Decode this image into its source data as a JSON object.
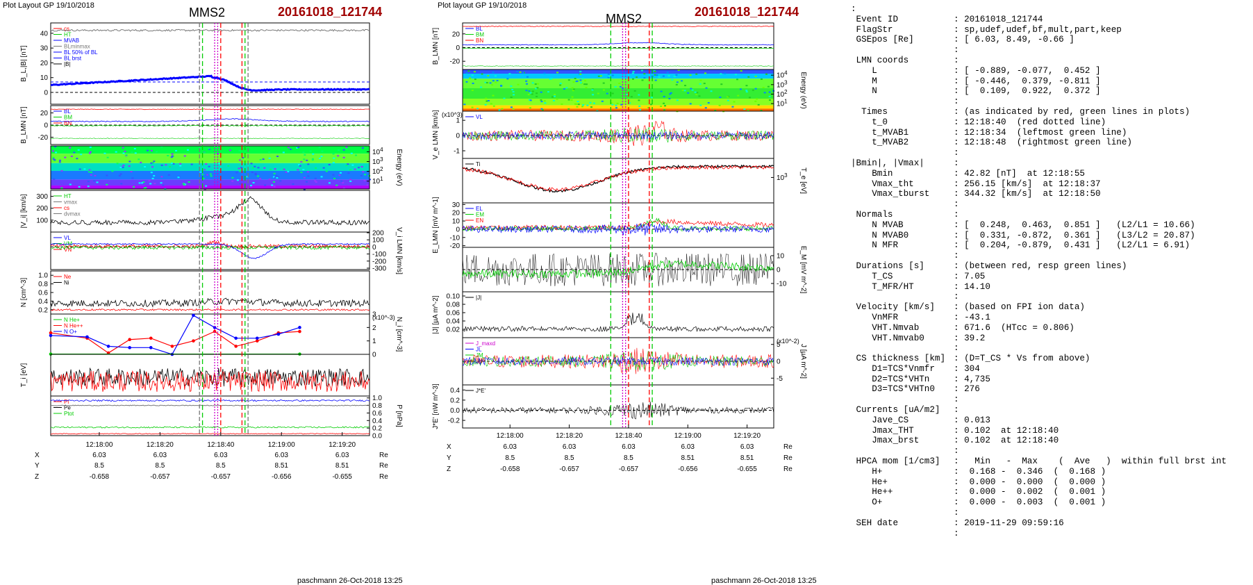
{
  "header": {
    "left_note": "Plot Layout GP 19/10/2018",
    "right_note": "Plot layout GP 19/10/2018",
    "spacecraft": "MMS2",
    "event": "20161018_121744"
  },
  "footer": {
    "left": "paschmann 26-Oct-2018 13:25",
    "right": "paschmann 26-Oct-2018 13:25"
  },
  "colors": {
    "red": "#ff0000",
    "green": "#00cc00",
    "blue": "#0000ff",
    "magenta": "#cc00cc",
    "black": "#000000",
    "gray": "#777777",
    "title_red": "#a00000"
  },
  "chart_data": [
    {
      "type": "line",
      "column": "left",
      "x_tick_labels": [
        "12:18:00",
        "12:18:20",
        "12:18:40",
        "12:19:00",
        "12:19:20"
      ],
      "x_range": [
        "12:17:44",
        "12:19:29"
      ],
      "markers": {
        "red_dashed": [
          "12:18:40",
          "12:18:47"
        ],
        "green_dashed": [
          "12:18:34",
          "12:18:48"
        ],
        "magenta_dotted": [
          "12:18:38",
          "12:18:39"
        ],
        "gray_dashed": [
          "12:18:33",
          "12:18:49"
        ]
      },
      "ephemeris": {
        "rows": [
          "X",
          "Y",
          "Z"
        ],
        "values": [
          [
            "6.03",
            "6.03",
            "6.03",
            "6.03",
            "6.03"
          ],
          [
            "8.5",
            "8.5",
            "8.5",
            "8.51",
            "8.51"
          ],
          [
            "-0.658",
            "-0.657",
            "-0.657",
            "-0.656",
            "-0.655"
          ]
        ],
        "unit": "Re"
      },
      "panels": [
        {
          "ylabel": "B_L,|B| [nT]",
          "yticks_left": [
            "40",
            "30",
            "20",
            "10",
            "0"
          ],
          "ylim": [
            -8,
            47
          ],
          "legend": [
            "cs",
            "HT",
            "MVAB",
            "BLminmax",
            "BL 50% of BL",
            "BL brst",
            "|B|"
          ],
          "series": [
            {
              "name": "|B|",
              "color": "#777777",
              "level": "flat ~42"
            },
            {
              "name": "BL",
              "color": "#0000ff",
              "shape": "rise to 11 then drop to ~0, back to 2"
            }
          ]
        },
        {
          "ylabel": "B_LMN [nT]",
          "yticks_left": [
            "20",
            "0",
            "-20"
          ],
          "ylim": [
            -32,
            32
          ],
          "legend": [
            "BL",
            "BM",
            "BN"
          ]
        },
        {
          "ylabel": "Energy (eV)",
          "yticks_right": [
            "10^4",
            "10^3",
            "10^2",
            "10^1"
          ],
          "type": "spectrogram"
        },
        {
          "ylabel": "|V_i| [km/s]",
          "yticks_left": [
            "300",
            "200",
            "100"
          ],
          "ylim": [
            0,
            350
          ],
          "legend": [
            "HT",
            "vmax",
            "cs",
            "dvmax"
          ]
        },
        {
          "ylabel": "V_i LMN [km/s]",
          "yticks_right": [
            "200",
            "100",
            "0",
            "-100",
            "-200",
            "-300"
          ],
          "ylim": [
            -320,
            210
          ],
          "legend": [
            "VL",
            "VM",
            "VN"
          ]
        },
        {
          "ylabel": "N [cm^-3]",
          "yticks_left": [
            "1.0",
            "0.8",
            "0.6",
            "0.4",
            "0.2"
          ],
          "ylim": [
            0.1,
            1.1
          ],
          "legend": [
            "Ne",
            "Ni"
          ]
        },
        {
          "ylabel": "N_i [cm^-3]",
          "scale": "x10^-3",
          "yticks_right": [
            "3",
            "2",
            "1",
            "0"
          ],
          "ylim": [
            0,
            3
          ],
          "legend": [
            "N He+",
            "N He++",
            "N O+"
          ],
          "series": [
            {
              "name": "N He++",
              "color": "#ff0000",
              "x": [
                "12:17:44",
                "12:17:56",
                "12:18:03",
                "12:18:10",
                "12:18:17",
                "12:18:24",
                "12:18:31",
                "12:18:38",
                "12:18:45",
                "12:18:52",
                "12:18:59",
                "12:19:06"
              ],
              "values": [
                1.6,
                1.2,
                0.1,
                1.1,
                1.2,
                0.6,
                1.0,
                1.7,
                0.6,
                1.0,
                1.6,
                1.7
              ]
            },
            {
              "name": "N O+",
              "color": "#0000ff",
              "x": [
                "12:17:44",
                "12:17:56",
                "12:18:03",
                "12:18:10",
                "12:18:17",
                "12:18:24",
                "12:18:31",
                "12:18:38",
                "12:18:45",
                "12:18:52",
                "12:18:59",
                "12:19:06"
              ],
              "values": [
                1.4,
                1.3,
                0.6,
                0.5,
                0.5,
                0.0,
                2.9,
                2.0,
                1.2,
                1.2,
                1.5,
                2.0
              ]
            },
            {
              "name": "N He+",
              "color": "#00cc00",
              "x": [
                "12:17:44",
                "12:19:06"
              ],
              "values": [
                0.02,
                0.02
              ]
            }
          ]
        },
        {
          "ylabel": "T_i [eV]",
          "yticks_left": [],
          "ylim": [
            0,
            1
          ]
        },
        {
          "ylabel": "P [nPa]",
          "yticks_right": [
            "1.0",
            "0.8",
            "0.6",
            "0.4",
            "0.2",
            "0.0"
          ],
          "ylim": [
            0,
            1.05
          ],
          "legend": [
            "Pi",
            "Pe",
            "Ptot"
          ]
        }
      ]
    },
    {
      "type": "line",
      "column": "right",
      "x_tick_labels": [
        "12:18:00",
        "12:18:20",
        "12:18:40",
        "12:19:00",
        "12:19:20"
      ],
      "x_range": [
        "12:17:44",
        "12:19:29"
      ],
      "markers": {
        "red_dashed": [
          "12:18:40",
          "12:18:47"
        ],
        "green_dashed": [
          "12:18:34",
          "12:18:48"
        ],
        "magenta_dotted": [
          "12:18:38",
          "12:18:39"
        ]
      },
      "ephemeris": {
        "rows": [
          "X",
          "Y",
          "Z"
        ],
        "values": [
          [
            "6.03",
            "6.03",
            "6.03",
            "6.03",
            "6.03"
          ],
          [
            "8.5",
            "8.5",
            "8.5",
            "8.51",
            "8.51"
          ],
          [
            "-0.658",
            "-0.657",
            "-0.657",
            "-0.656",
            "-0.655"
          ]
        ],
        "unit": "Re"
      },
      "panels": [
        {
          "ylabel": "B_LMN [nT]",
          "yticks_left": [
            "20",
            "0",
            "-20"
          ],
          "ylim": [
            -32,
            36
          ],
          "legend": [
            "BL",
            "BM",
            "BN"
          ]
        },
        {
          "ylabel": "Energy (eV)",
          "yticks_right": [
            "10^4",
            "10^3",
            "10^2",
            "10^1"
          ],
          "type": "spectrogram"
        },
        {
          "ylabel": "V_e LMN [km/s]",
          "scale": "x10^3",
          "yticks_left": [
            "1",
            "0",
            "-1"
          ],
          "ylim": [
            -1.5,
            1.6
          ],
          "legend": [
            "VL"
          ]
        },
        {
          "ylabel": "T_e [eV]",
          "yticks_right": [
            "10^3"
          ],
          "ylim": [
            0,
            1
          ],
          "legend": [
            "Ti"
          ]
        },
        {
          "ylabel": "E_LMN [mV m^-1]",
          "yticks_left": [
            "30",
            "20",
            "10",
            "0",
            "-10",
            "-20"
          ],
          "ylim": [
            -22,
            32
          ],
          "legend": [
            "EL",
            "EM",
            "EN"
          ]
        },
        {
          "ylabel": "E_M [mV m^-2]",
          "yticks_right": [
            "10",
            "0",
            "-10"
          ],
          "ylim": [
            -16,
            16
          ]
        },
        {
          "ylabel": "|J| [µA m^-2]",
          "yticks_left": [
            "0.10",
            "0.08",
            "0.06",
            "0.04",
            "0.02"
          ],
          "ylim": [
            0,
            0.11
          ],
          "legend": [
            "|J|"
          ]
        },
        {
          "ylabel": "J [µA m^-2]",
          "scale": "x10^-2",
          "yticks_right": [
            "5",
            "0",
            "-5"
          ],
          "ylim": [
            -7,
            7
          ],
          "legend": [
            "J_maxd",
            "JL",
            "JM",
            "JN"
          ]
        },
        {
          "ylabel": "J*E' [nW m^-3]",
          "yticks_left": [
            "0.4",
            "0.2",
            "0.0",
            "-0.2"
          ],
          "ylim": [
            -0.35,
            0.5
          ],
          "legend": [
            "J*E'"
          ]
        }
      ]
    }
  ],
  "summary": [
    [
      ":",
      "",
      ""
    ],
    [
      " Event ID",
      ": 20161018_121744"
    ],
    [
      " FlagStr",
      ": sp,udef,udef,bf,mult,part,keep"
    ],
    [
      " GSEpos [Re]",
      ": [ 6.03, 8.49, -0.66 ]"
    ],
    [
      "",
      ":"
    ],
    [
      " LMN coords",
      ":"
    ],
    [
      "    L",
      ": [ -0.889, -0.077,  0.452 ]"
    ],
    [
      "    M",
      ": [ -0.446,  0.379, -0.811 ]"
    ],
    [
      "    N",
      ": [  0.109,  0.922,  0.372 ]"
    ],
    [
      "",
      ":"
    ],
    [
      "  Times",
      ": (as indicated by red, green lines in plots)"
    ],
    [
      "    t_0",
      ": 12:18:40  (red dotted line)"
    ],
    [
      "    t_MVAB1",
      ": 12:18:34  (leftmost green line)"
    ],
    [
      "    t_MVAB2",
      ": 12:18:48  (rightmost green line)"
    ],
    [
      "",
      ":"
    ],
    [
      "|Bmin|, |Vmax|",
      ":"
    ],
    [
      "    Bmin",
      ": 42.82 [nT]  at 12:18:55"
    ],
    [
      "    Vmax_tht",
      ": 256.15 [km/s]  at 12:18:37"
    ],
    [
      "    Vmax_tburst",
      ": 344.32 [km/s]  at 12:18:50"
    ],
    [
      "",
      ":"
    ],
    [
      " Normals",
      ":"
    ],
    [
      "    N MVAB",
      ": [  0.248,  0.463,  0.851 ]   (L2/L1 = 10.66)"
    ],
    [
      "    N MVAB0",
      ": [  0.331, -0.872,  0.361 ]   (L3/L2 = 20.87)"
    ],
    [
      "    N MFR",
      ": [  0.204, -0.879,  0.431 ]   (L2/L1 = 6.91)"
    ],
    [
      "",
      ":"
    ],
    [
      " Durations [s]",
      ": (between red, resp green lines)"
    ],
    [
      "    T_CS",
      ": 7.05"
    ],
    [
      "    T_MFR/HT",
      ": 14.10"
    ],
    [
      "",
      ":"
    ],
    [
      " Velocity [km/s]",
      ": (based on FPI ion data)"
    ],
    [
      "    VnMFR",
      ": -43.1"
    ],
    [
      "    VHT.Nmvab",
      ": 671.6  (HTcc = 0.806)"
    ],
    [
      "    VHT.Nmvab0",
      ": 39.2"
    ],
    [
      "",
      ":"
    ],
    [
      " CS thickness [km]",
      ": (D=T_CS * Vs from above)"
    ],
    [
      "    D1=TCS*Vnmfr",
      ": 304"
    ],
    [
      "    D2=TCS*VHTn",
      ": 4,735"
    ],
    [
      "    D3=TCS*VHTn0",
      ": 276"
    ],
    [
      "",
      ":"
    ],
    [
      " Currents [uA/m2]",
      ":"
    ],
    [
      "    Jave_CS",
      ": 0.013"
    ],
    [
      "    Jmax_THT",
      ": 0.102  at 12:18:40"
    ],
    [
      "    Jmax_brst",
      ": 0.102  at 12:18:40"
    ],
    [
      "",
      ":"
    ],
    [
      " HPCA mom [1/cm3]",
      ":   Min   -  Max    (  Ave   )  within full brst int"
    ],
    [
      "    H+",
      ":  0.168 -  0.346  (  0.168 )"
    ],
    [
      "    He+",
      ":  0.000 -  0.000  (  0.000 )"
    ],
    [
      "    He++",
      ":  0.000 -  0.002  (  0.001 )"
    ],
    [
      "    O+",
      ":  0.000 -  0.003  (  0.001 )"
    ],
    [
      "",
      ":"
    ],
    [
      " SEH date",
      ": 2019-11-29 09:59:16"
    ],
    [
      "",
      ":"
    ]
  ]
}
